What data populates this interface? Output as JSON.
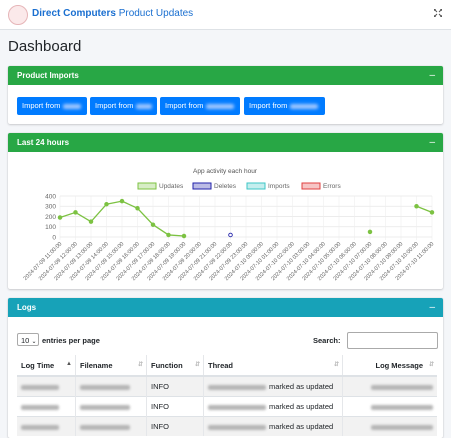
{
  "header": {
    "brand": "Direct Computers",
    "subtitle": "Product Updates"
  },
  "page_title": "Dashboard",
  "imports": {
    "title": "Product Imports",
    "buttons": [
      "Import from",
      "Import from",
      "Import from",
      "Import from"
    ]
  },
  "activity": {
    "title": "Last 24 hours"
  },
  "chart_data": {
    "type": "line",
    "title": "App activity each hour",
    "categories": [
      "2024-07-09 11:00:00",
      "2024-07-09 12:00:00",
      "2024-07-09 13:00:00",
      "2024-07-09 14:00:00",
      "2024-07-09 15:00:00",
      "2024-07-09 16:00:00",
      "2024-07-09 17:00:00",
      "2024-07-09 18:00:00",
      "2024-07-09 19:00:00",
      "2024-07-09 20:00:00",
      "2024-07-09 21:00:00",
      "2024-07-09 22:00:00",
      "2024-07-09 23:00:00",
      "2024-07-10 00:00:00",
      "2024-07-10 01:00:00",
      "2024-07-10 02:00:00",
      "2024-07-10 03:00:00",
      "2024-07-10 04:00:00",
      "2024-07-10 05:00:00",
      "2024-07-10 06:00:00",
      "2024-07-10 07:00:00",
      "2024-07-10 08:00:00",
      "2024-07-10 09:00:00",
      "2024-07-10 10:00:00",
      "2024-07-10 11:00:00"
    ],
    "series": [
      {
        "name": "Updates",
        "color": "#7cc242",
        "values": [
          190,
          240,
          150,
          320,
          350,
          280,
          120,
          20,
          10,
          null,
          null,
          null,
          null,
          null,
          null,
          null,
          null,
          null,
          null,
          null,
          50,
          null,
          null,
          300,
          240
        ]
      },
      {
        "name": "Deletes",
        "color": "#2222aa",
        "values": [
          null,
          null,
          null,
          null,
          null,
          null,
          null,
          null,
          null,
          null,
          null,
          20,
          null,
          null,
          null,
          null,
          null,
          null,
          null,
          null,
          null,
          null,
          null,
          null,
          null
        ]
      },
      {
        "name": "Imports",
        "color": "#3cc6c6",
        "values": [
          null,
          null,
          null,
          null,
          null,
          null,
          null,
          null,
          null,
          null,
          null,
          null,
          null,
          null,
          null,
          null,
          null,
          null,
          null,
          null,
          null,
          null,
          null,
          null,
          null
        ]
      },
      {
        "name": "Errors",
        "color": "#e04040",
        "values": [
          null,
          null,
          null,
          null,
          null,
          null,
          null,
          null,
          null,
          null,
          null,
          null,
          null,
          null,
          null,
          null,
          null,
          null,
          null,
          null,
          null,
          null,
          null,
          null,
          null
        ]
      }
    ],
    "ylim": [
      0,
      400
    ],
    "yticks": [
      0,
      100,
      200,
      300,
      400
    ],
    "grid": true,
    "legend": "top"
  },
  "logs": {
    "title": "Logs",
    "page_size": "10",
    "page_size_label": "entries per page",
    "search_label": "Search:",
    "columns": [
      "Log Time",
      "Filename",
      "Function",
      "Thread",
      "Log Message"
    ],
    "rows": [
      {
        "function": "INFO",
        "thread": "marked as updated"
      },
      {
        "function": "INFO",
        "thread": "marked as updated"
      },
      {
        "function": "INFO",
        "thread": "marked as updated"
      }
    ]
  }
}
